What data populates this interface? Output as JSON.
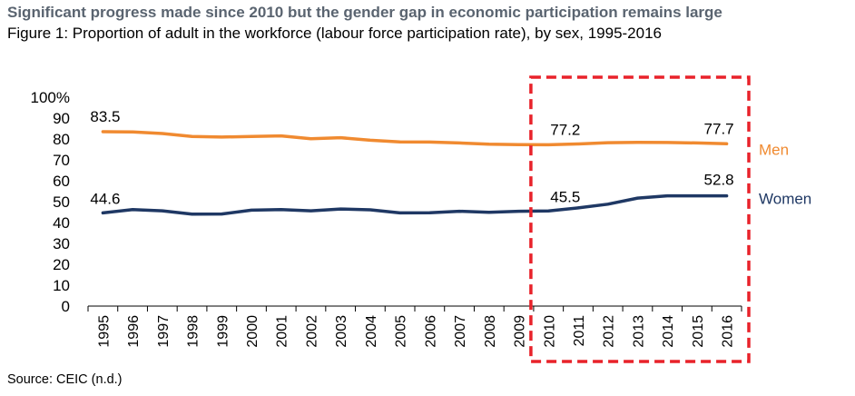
{
  "header": {
    "title": "Significant progress made since 2010 but the gender gap in economic participation remains large",
    "subtitle": "Figure 1: Proportion of adult in the workforce (labour force participation rate), by sex, 1995-2016"
  },
  "footer": {
    "source": "Source: CEIC (n.d.)"
  },
  "chart_data": {
    "type": "line",
    "title": "Figure 1: Proportion of adult in the workforce (labour force participation rate), by sex, 1995-2016",
    "xlabel": "",
    "ylabel": "",
    "x": [
      "1995",
      "1996",
      "1997",
      "1998",
      "1999",
      "2000",
      "2001",
      "2002",
      "2003",
      "2004",
      "2005",
      "2006",
      "2007",
      "2008",
      "2009",
      "2010",
      "2011",
      "2012",
      "2013",
      "2014",
      "2015",
      "2016"
    ],
    "ylim": [
      0,
      100
    ],
    "yticks": [
      0,
      10,
      20,
      30,
      40,
      50,
      60,
      70,
      80,
      90,
      100
    ],
    "ytick_labels": [
      "0",
      "10",
      "20",
      "30",
      "40",
      "50",
      "60",
      "70",
      "80",
      "90",
      "100%"
    ],
    "series": [
      {
        "name": "Men",
        "color": "#F08A30",
        "values": [
          83.5,
          83.4,
          82.6,
          81.2,
          80.9,
          81.2,
          81.5,
          80.1,
          80.6,
          79.4,
          78.6,
          78.5,
          78.1,
          77.5,
          77.3,
          77.2,
          77.6,
          78.2,
          78.4,
          78.3,
          78.1,
          77.7
        ]
      },
      {
        "name": "Women",
        "color": "#1F3864",
        "values": [
          44.6,
          46.2,
          45.6,
          44.0,
          44.1,
          45.9,
          46.2,
          45.6,
          46.5,
          46.1,
          44.6,
          44.7,
          45.4,
          44.9,
          45.4,
          45.5,
          47.0,
          48.8,
          51.7,
          52.8,
          52.8,
          52.8
        ]
      }
    ],
    "data_labels": [
      {
        "series": "Men",
        "x": "1995",
        "text": "83.5"
      },
      {
        "series": "Men",
        "x": "2010",
        "text": "77.2"
      },
      {
        "series": "Men",
        "x": "2016",
        "text": "77.7"
      },
      {
        "series": "Women",
        "x": "1995",
        "text": "44.6"
      },
      {
        "series": "Women",
        "x": "2010",
        "text": "45.5"
      },
      {
        "series": "Women",
        "x": "2016",
        "text": "52.8"
      }
    ],
    "highlight": {
      "from": "2010",
      "to": "2016",
      "color": "#E8222A",
      "style": "dashed"
    },
    "legend": "right, inline"
  }
}
